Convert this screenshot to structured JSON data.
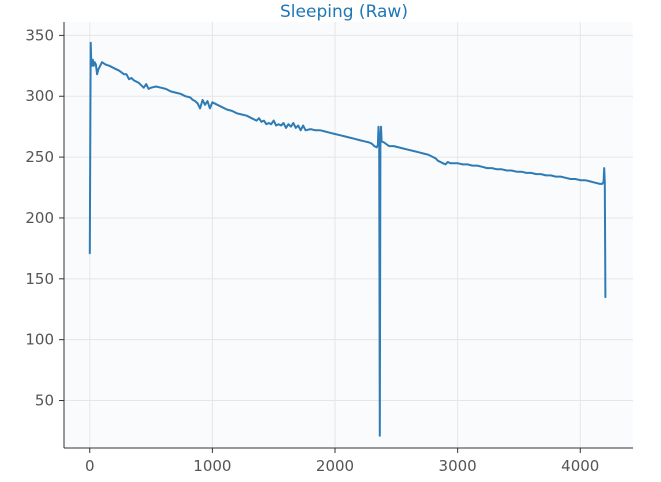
{
  "chart_data": {
    "type": "line",
    "title": "Sleeping (Raw)",
    "xlabel": "",
    "ylabel": "",
    "xlim": [
      -210,
      4430
    ],
    "ylim": [
      11,
      361
    ],
    "xticks": [
      0,
      1000,
      2000,
      3000,
      4000
    ],
    "yticks": [
      50,
      100,
      150,
      200,
      250,
      300,
      350
    ],
    "grid": true,
    "legend": "none",
    "series": [
      {
        "color": "#2e7bb5",
        "points": [
          [
            0,
            171
          ],
          [
            5,
            290
          ],
          [
            8,
            344
          ],
          [
            12,
            330
          ],
          [
            18,
            325
          ],
          [
            25,
            330
          ],
          [
            32,
            325
          ],
          [
            40,
            328
          ],
          [
            50,
            326
          ],
          [
            60,
            318
          ],
          [
            70,
            322
          ],
          [
            85,
            325
          ],
          [
            100,
            328
          ],
          [
            130,
            326
          ],
          [
            160,
            325
          ],
          [
            200,
            323
          ],
          [
            240,
            321
          ],
          [
            280,
            318
          ],
          [
            300,
            318
          ],
          [
            320,
            314
          ],
          [
            340,
            315
          ],
          [
            360,
            313
          ],
          [
            380,
            312
          ],
          [
            400,
            311
          ],
          [
            420,
            309
          ],
          [
            440,
            307
          ],
          [
            460,
            310
          ],
          [
            480,
            306
          ],
          [
            500,
            307
          ],
          [
            540,
            308
          ],
          [
            580,
            307
          ],
          [
            620,
            306
          ],
          [
            660,
            304
          ],
          [
            700,
            303
          ],
          [
            740,
            302
          ],
          [
            780,
            300
          ],
          [
            820,
            299
          ],
          [
            840,
            297
          ],
          [
            860,
            296
          ],
          [
            880,
            294
          ],
          [
            900,
            290
          ],
          [
            920,
            297
          ],
          [
            940,
            293
          ],
          [
            960,
            296
          ],
          [
            980,
            290
          ],
          [
            1000,
            295
          ],
          [
            1040,
            293
          ],
          [
            1080,
            291
          ],
          [
            1120,
            289
          ],
          [
            1160,
            288
          ],
          [
            1200,
            286
          ],
          [
            1240,
            285
          ],
          [
            1280,
            284
          ],
          [
            1320,
            282
          ],
          [
            1360,
            280
          ],
          [
            1380,
            282
          ],
          [
            1400,
            279
          ],
          [
            1420,
            280
          ],
          [
            1440,
            277
          ],
          [
            1460,
            278
          ],
          [
            1480,
            277
          ],
          [
            1500,
            280
          ],
          [
            1520,
            276
          ],
          [
            1540,
            277
          ],
          [
            1560,
            276
          ],
          [
            1580,
            278
          ],
          [
            1600,
            274
          ],
          [
            1620,
            277
          ],
          [
            1640,
            275
          ],
          [
            1660,
            278
          ],
          [
            1680,
            274
          ],
          [
            1700,
            276
          ],
          [
            1720,
            272
          ],
          [
            1740,
            276
          ],
          [
            1760,
            272
          ],
          [
            1800,
            273
          ],
          [
            1840,
            272
          ],
          [
            1880,
            272
          ],
          [
            1920,
            271
          ],
          [
            1960,
            270
          ],
          [
            2000,
            269
          ],
          [
            2040,
            268
          ],
          [
            2080,
            267
          ],
          [
            2120,
            266
          ],
          [
            2160,
            265
          ],
          [
            2200,
            264
          ],
          [
            2240,
            263
          ],
          [
            2280,
            262
          ],
          [
            2300,
            261
          ],
          [
            2320,
            259
          ],
          [
            2340,
            258
          ],
          [
            2350,
            260
          ],
          [
            2355,
            275
          ],
          [
            2360,
            262
          ],
          [
            2365,
            21
          ],
          [
            2370,
            258
          ],
          [
            2375,
            275
          ],
          [
            2380,
            263
          ],
          [
            2400,
            262
          ],
          [
            2440,
            259
          ],
          [
            2480,
            259
          ],
          [
            2520,
            258
          ],
          [
            2560,
            257
          ],
          [
            2600,
            256
          ],
          [
            2640,
            255
          ],
          [
            2680,
            254
          ],
          [
            2720,
            253
          ],
          [
            2760,
            252
          ],
          [
            2780,
            251
          ],
          [
            2800,
            250
          ],
          [
            2820,
            249
          ],
          [
            2840,
            247
          ],
          [
            2860,
            246
          ],
          [
            2880,
            245
          ],
          [
            2900,
            244
          ],
          [
            2920,
            246
          ],
          [
            2940,
            245
          ],
          [
            2960,
            245
          ],
          [
            3000,
            245
          ],
          [
            3040,
            244
          ],
          [
            3080,
            244
          ],
          [
            3120,
            243
          ],
          [
            3160,
            243
          ],
          [
            3200,
            242
          ],
          [
            3240,
            241
          ],
          [
            3280,
            241
          ],
          [
            3320,
            240
          ],
          [
            3360,
            240
          ],
          [
            3400,
            239
          ],
          [
            3440,
            239
          ],
          [
            3480,
            238
          ],
          [
            3520,
            238
          ],
          [
            3560,
            237
          ],
          [
            3600,
            237
          ],
          [
            3640,
            236
          ],
          [
            3680,
            236
          ],
          [
            3720,
            235
          ],
          [
            3760,
            235
          ],
          [
            3800,
            234
          ],
          [
            3840,
            234
          ],
          [
            3880,
            233
          ],
          [
            3920,
            232
          ],
          [
            3960,
            232
          ],
          [
            4000,
            231
          ],
          [
            4040,
            231
          ],
          [
            4080,
            230
          ],
          [
            4120,
            229
          ],
          [
            4160,
            228
          ],
          [
            4180,
            228
          ],
          [
            4190,
            230
          ],
          [
            4195,
            241
          ],
          [
            4200,
            229
          ],
          [
            4205,
            135
          ]
        ]
      }
    ]
  }
}
